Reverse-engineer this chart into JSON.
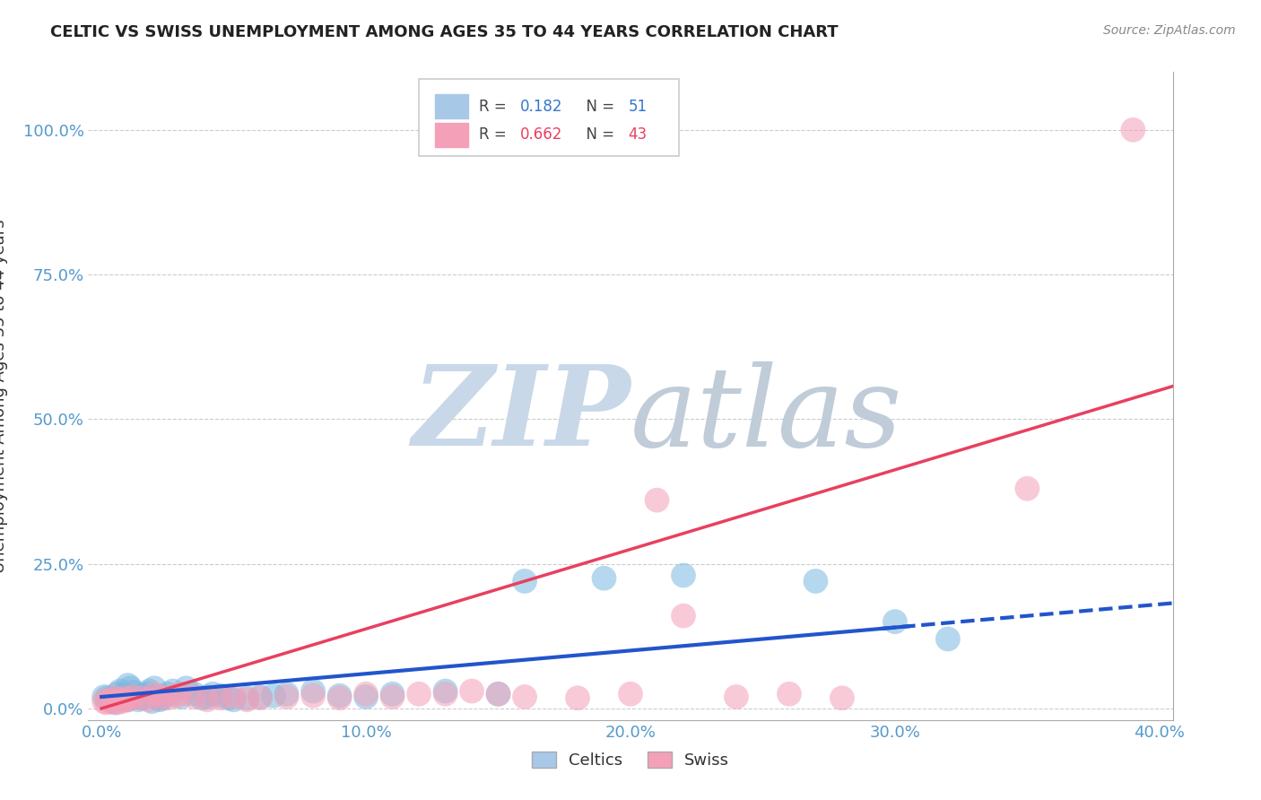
{
  "title": "CELTIC VS SWISS UNEMPLOYMENT AMONG AGES 35 TO 44 YEARS CORRELATION CHART",
  "source": "Source: ZipAtlas.com",
  "xlabel_ticks": [
    "0.0%",
    "10.0%",
    "20.0%",
    "30.0%",
    "40.0%"
  ],
  "ylabel_ticks": [
    "0.0%",
    "25.0%",
    "50.0%",
    "75.0%",
    "100.0%"
  ],
  "xlim": [
    -0.005,
    0.405
  ],
  "ylim": [
    -0.02,
    1.1
  ],
  "celtics_color": "#7ab8e0",
  "swiss_color": "#f4a0b8",
  "celtics_line_color": "#2255cc",
  "swiss_line_color": "#e84060",
  "watermark_zip_color": "#c8d8e8",
  "watermark_atlas_color": "#c0ccd8",
  "celtics_scatter_x": [
    0.001,
    0.002,
    0.003,
    0.004,
    0.005,
    0.006,
    0.007,
    0.008,
    0.009,
    0.01,
    0.01,
    0.011,
    0.012,
    0.013,
    0.014,
    0.015,
    0.016,
    0.017,
    0.018,
    0.019,
    0.02,
    0.021,
    0.022,
    0.023,
    0.025,
    0.027,
    0.03,
    0.032,
    0.035,
    0.038,
    0.04,
    0.042,
    0.045,
    0.048,
    0.05,
    0.055,
    0.06,
    0.065,
    0.07,
    0.08,
    0.09,
    0.1,
    0.11,
    0.13,
    0.15,
    0.16,
    0.19,
    0.22,
    0.27,
    0.3,
    0.32
  ],
  "celtics_scatter_y": [
    0.02,
    0.018,
    0.015,
    0.012,
    0.01,
    0.025,
    0.03,
    0.022,
    0.018,
    0.015,
    0.04,
    0.035,
    0.028,
    0.02,
    0.015,
    0.018,
    0.022,
    0.025,
    0.03,
    0.012,
    0.035,
    0.02,
    0.015,
    0.018,
    0.025,
    0.03,
    0.02,
    0.035,
    0.025,
    0.018,
    0.02,
    0.025,
    0.022,
    0.018,
    0.015,
    0.018,
    0.02,
    0.022,
    0.025,
    0.03,
    0.022,
    0.02,
    0.025,
    0.03,
    0.025,
    0.22,
    0.225,
    0.23,
    0.22,
    0.15,
    0.12
  ],
  "swiss_scatter_x": [
    0.001,
    0.002,
    0.003,
    0.004,
    0.005,
    0.006,
    0.007,
    0.008,
    0.009,
    0.01,
    0.012,
    0.015,
    0.018,
    0.02,
    0.022,
    0.025,
    0.028,
    0.03,
    0.035,
    0.04,
    0.045,
    0.05,
    0.055,
    0.06,
    0.07,
    0.08,
    0.09,
    0.1,
    0.11,
    0.12,
    0.13,
    0.14,
    0.15,
    0.16,
    0.18,
    0.2,
    0.21,
    0.22,
    0.24,
    0.26,
    0.28,
    0.35,
    0.39
  ],
  "swiss_scatter_y": [
    0.012,
    0.01,
    0.015,
    0.012,
    0.018,
    0.01,
    0.015,
    0.012,
    0.018,
    0.015,
    0.02,
    0.018,
    0.015,
    0.025,
    0.02,
    0.018,
    0.022,
    0.025,
    0.02,
    0.015,
    0.018,
    0.02,
    0.015,
    0.018,
    0.02,
    0.022,
    0.018,
    0.025,
    0.02,
    0.025,
    0.025,
    0.03,
    0.025,
    0.02,
    0.018,
    0.025,
    0.36,
    0.16,
    0.02,
    0.025,
    0.018,
    0.38,
    1.0
  ]
}
